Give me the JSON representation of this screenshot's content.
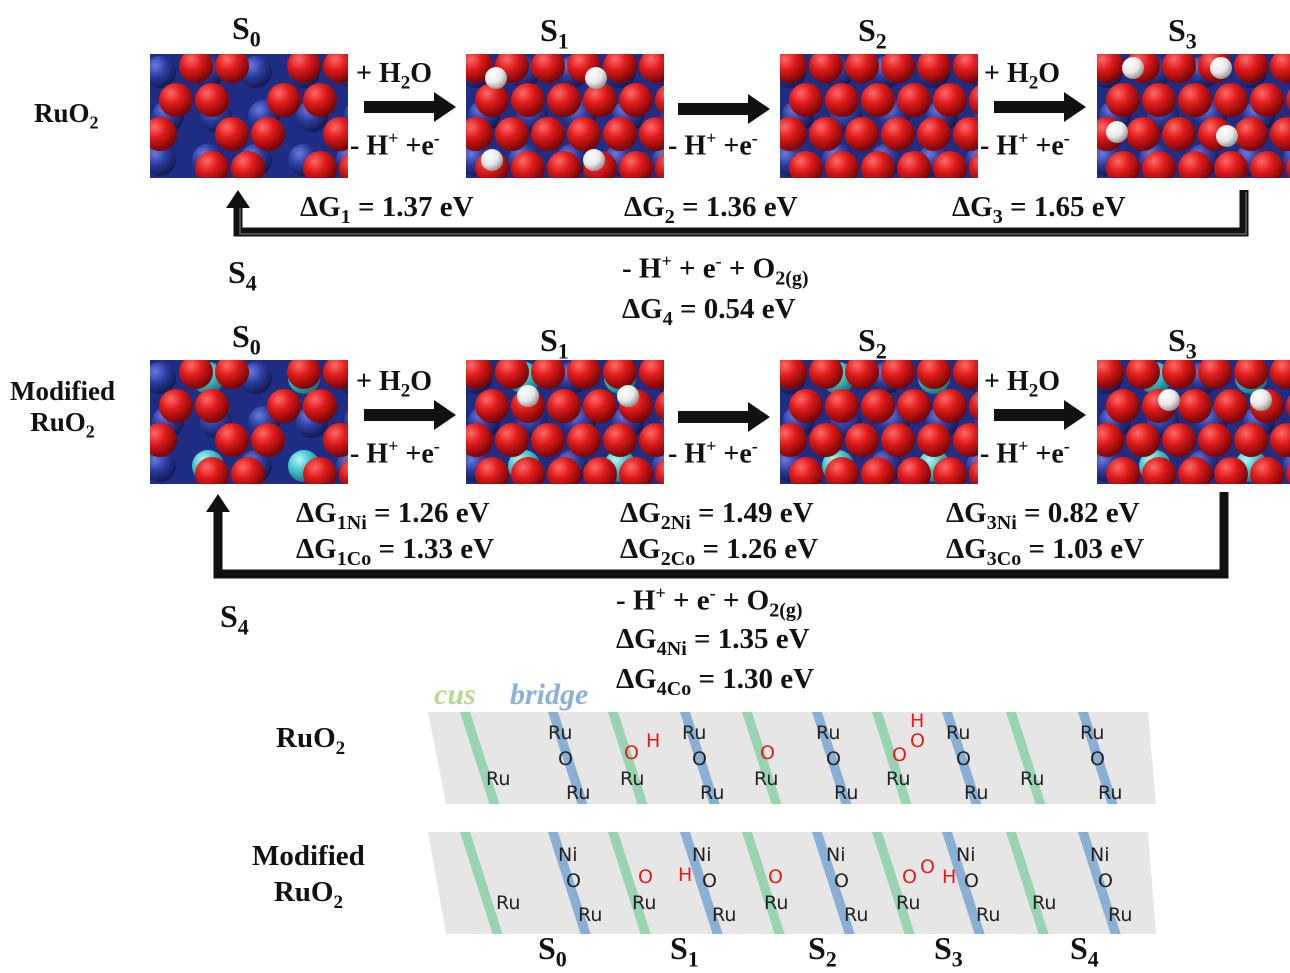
{
  "top": {
    "row_label": "RuO",
    "row_label_sub": "2",
    "states": [
      {
        "id": "S",
        "sub": "0"
      },
      {
        "id": "S",
        "sub": "1"
      },
      {
        "id": "S",
        "sub": "2"
      },
      {
        "id": "S",
        "sub": "3"
      }
    ],
    "return_state": {
      "id": "S",
      "sub": "4"
    },
    "step_add": {
      "pre": "+ H",
      "sub": "2",
      "post": "O"
    },
    "step_remove": {
      "pre": "- H",
      "sup": "+",
      "post": " +e",
      "sup2": "-"
    },
    "dG": [
      {
        "label": "ΔG",
        "sub": "1",
        "value": " = 1.37 eV"
      },
      {
        "label": "ΔG",
        "sub": "2",
        "value": " = 1.36 eV"
      },
      {
        "label": "ΔG",
        "sub": "3",
        "value": " = 1.65 eV"
      }
    ],
    "final_step": {
      "a": "- H",
      "a_sup": "+",
      "b": " + e",
      "b_sup": "-",
      "c": " + O",
      "c_sub": "2(g)"
    },
    "dG4": {
      "label": "ΔG",
      "sub": "4",
      "value": " = 0.54 eV"
    }
  },
  "bottom": {
    "row_label_line1": "Modified",
    "row_label_line2": "RuO",
    "row_label_sub": "2",
    "dG": [
      {
        "l1": "ΔG",
        "s1": "1Ni",
        "v1": " = 1.26 eV",
        "l2": "ΔG",
        "s2": "1Co",
        "v2": " = 1.33 eV"
      },
      {
        "l1": "ΔG",
        "s1": "2Ni",
        "v1": " = 1.49 eV",
        "l2": "ΔG",
        "s2": "2Co",
        "v2": " = 1.26 eV"
      },
      {
        "l1": "ΔG",
        "s1": "3Ni",
        "v1": " = 0.82 eV",
        "l2": "ΔG",
        "s2": "3Co",
        "v2": " = 1.03 eV"
      }
    ],
    "final_step": {
      "a": "- H",
      "a_sup": "+",
      "b": " + e",
      "b_sup": "-",
      "c": " + O",
      "c_sub": "2(g)"
    },
    "dG4": [
      {
        "label": "ΔG",
        "sub": "4Ni",
        "value": " = 1.35 eV"
      },
      {
        "label": "ΔG",
        "sub": "4Co",
        "value": " = 1.30 eV"
      }
    ]
  },
  "scheme": {
    "legend_cus": "cus",
    "legend_bridge": "bridge",
    "label_top": {
      "text": "RuO",
      "sub": "2"
    },
    "label_bottom_line1": "Modified",
    "label_bottom_line2": {
      "text": "RuO",
      "sub": "2"
    },
    "states": [
      {
        "id": "S",
        "sub": "0"
      },
      {
        "id": "S",
        "sub": "1"
      },
      {
        "id": "S",
        "sub": "2"
      },
      {
        "id": "S",
        "sub": "3"
      },
      {
        "id": "S",
        "sub": "4"
      }
    ],
    "atoms": {
      "Ru": "Ru",
      "O": "O",
      "H": "H",
      "Ni": "Ni"
    },
    "colors": {
      "cus": "#8fd1a8",
      "bridge": "#7ea8d2",
      "panel": "#e6e6e6",
      "adsorbate": "#e31b1b"
    }
  },
  "colors": {
    "oxygen": "#d8151b",
    "ruthenium": "#2b3da0",
    "hydrogen": "#f2f2f2",
    "dopant": "#41c6cc"
  }
}
